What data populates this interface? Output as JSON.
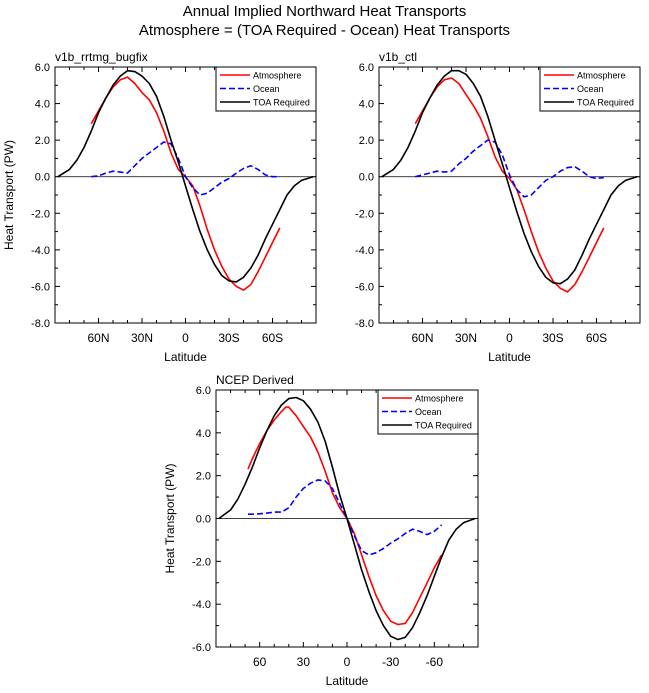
{
  "title_line1": "Annual Implied Northward Heat Transports",
  "title_line2": "Atmosphere = (TOA Required - Ocean) Heat Transports",
  "colors": {
    "atmosphere": "#ff0000",
    "ocean": "#0000ff",
    "toa": "#000000"
  },
  "chart_data": [
    {
      "type": "line",
      "panel_title": "v1b_rrtmg_bugfix",
      "xlabel": "Latitude",
      "ylabel": "Heat Transport (PW)",
      "xlim": [
        90,
        -90
      ],
      "ylim": [
        -8,
        6
      ],
      "xticks": [
        60,
        30,
        0,
        -30,
        -60
      ],
      "xtick_labels": [
        "60N",
        "30N",
        "0",
        "30S",
        "60S"
      ],
      "yticks": [
        -8,
        -6,
        -4,
        -2,
        0,
        2,
        4,
        6
      ],
      "ytick_labels": [
        "-8.0",
        "-6.0",
        "-4.0",
        "-2.0",
        "0.0",
        "2.0",
        "4.0",
        "6.0"
      ],
      "legend": [
        "Atmosphere",
        "Ocean",
        "TOA Required"
      ],
      "legend_position": "top-right",
      "series": [
        {
          "name": "Atmosphere",
          "style": "solid",
          "color": "#ff0000",
          "x": [
            65,
            60,
            55,
            50,
            45,
            40,
            35,
            30,
            25,
            20,
            15,
            10,
            5,
            0,
            -5,
            -10,
            -15,
            -20,
            -25,
            -30,
            -35,
            -40,
            -45,
            -50,
            -55,
            -60,
            -65
          ],
          "y": [
            2.9,
            3.6,
            4.3,
            4.9,
            5.3,
            5.45,
            5.1,
            4.6,
            4.2,
            3.5,
            2.5,
            1.3,
            0.4,
            0.0,
            -0.5,
            -1.6,
            -2.9,
            -4.0,
            -4.9,
            -5.6,
            -6.0,
            -6.2,
            -5.9,
            -5.2,
            -4.4,
            -3.6,
            -2.8
          ]
        },
        {
          "name": "Ocean",
          "style": "dashed",
          "color": "#0000ff",
          "x": [
            65,
            60,
            55,
            50,
            45,
            40,
            35,
            30,
            25,
            20,
            15,
            10,
            5,
            0,
            -5,
            -10,
            -15,
            -20,
            -25,
            -30,
            -35,
            -40,
            -45,
            -50,
            -55,
            -60,
            -65
          ],
          "y": [
            0.0,
            0.05,
            0.2,
            0.3,
            0.25,
            0.2,
            0.6,
            1.0,
            1.3,
            1.6,
            1.9,
            1.8,
            1.0,
            0.0,
            -0.6,
            -1.0,
            -0.9,
            -0.6,
            -0.3,
            -0.1,
            0.2,
            0.45,
            0.6,
            0.4,
            0.1,
            0.0,
            0.0
          ]
        },
        {
          "name": "TOA Required",
          "style": "solid",
          "color": "#000000",
          "x": [
            88,
            80,
            75,
            70,
            65,
            60,
            55,
            50,
            45,
            40,
            35,
            30,
            25,
            20,
            15,
            10,
            5,
            0,
            -5,
            -10,
            -15,
            -20,
            -25,
            -30,
            -35,
            -40,
            -45,
            -50,
            -55,
            -60,
            -65,
            -70,
            -75,
            -80,
            -88
          ],
          "y": [
            0.0,
            0.4,
            0.9,
            1.6,
            2.5,
            3.5,
            4.3,
            5.0,
            5.5,
            5.8,
            5.75,
            5.5,
            5.1,
            4.4,
            3.3,
            2.0,
            0.8,
            -0.5,
            -1.8,
            -3.0,
            -4.0,
            -4.8,
            -5.4,
            -5.7,
            -5.75,
            -5.5,
            -5.0,
            -4.3,
            -3.4,
            -2.6,
            -1.8,
            -1.0,
            -0.5,
            -0.2,
            0.0
          ]
        }
      ]
    },
    {
      "type": "line",
      "panel_title": "v1b_ctl",
      "xlabel": "Latitude",
      "ylabel": "",
      "xlim": [
        90,
        -90
      ],
      "ylim": [
        -8,
        6
      ],
      "xticks": [
        60,
        30,
        0,
        -30,
        -60
      ],
      "xtick_labels": [
        "60N",
        "30N",
        "0",
        "30S",
        "60S"
      ],
      "yticks": [
        -8,
        -6,
        -4,
        -2,
        0,
        2,
        4,
        6
      ],
      "ytick_labels": [
        "-8.0",
        "-6.0",
        "-4.0",
        "-2.0",
        "0.0",
        "2.0",
        "4.0",
        "6.0"
      ],
      "legend": [
        "Atmosphere",
        "Ocean",
        "TOA Required"
      ],
      "legend_position": "top-right",
      "series": [
        {
          "name": "Atmosphere",
          "style": "solid",
          "color": "#ff0000",
          "x": [
            65,
            60,
            55,
            50,
            45,
            40,
            35,
            30,
            25,
            20,
            15,
            10,
            5,
            0,
            -5,
            -10,
            -15,
            -20,
            -25,
            -30,
            -35,
            -40,
            -45,
            -50,
            -55,
            -60,
            -65
          ],
          "y": [
            2.9,
            3.6,
            4.3,
            4.9,
            5.3,
            5.4,
            5.1,
            4.5,
            3.9,
            3.2,
            2.2,
            1.1,
            0.3,
            -0.1,
            -0.7,
            -1.8,
            -3.0,
            -4.1,
            -5.0,
            -5.7,
            -6.1,
            -6.3,
            -5.9,
            -5.2,
            -4.4,
            -3.6,
            -2.8
          ]
        },
        {
          "name": "Ocean",
          "style": "dashed",
          "color": "#0000ff",
          "x": [
            65,
            60,
            55,
            50,
            45,
            40,
            35,
            30,
            25,
            20,
            15,
            10,
            5,
            0,
            -5,
            -10,
            -15,
            -20,
            -25,
            -30,
            -35,
            -40,
            -45,
            -50,
            -55,
            -60,
            -65
          ],
          "y": [
            0.0,
            0.1,
            0.2,
            0.3,
            0.25,
            0.3,
            0.7,
            1.0,
            1.4,
            1.7,
            2.0,
            1.9,
            1.2,
            0.1,
            -0.7,
            -1.1,
            -1.0,
            -0.6,
            -0.2,
            0.0,
            0.3,
            0.5,
            0.55,
            0.3,
            0.0,
            -0.1,
            -0.05
          ]
        },
        {
          "name": "TOA Required",
          "style": "solid",
          "color": "#000000",
          "x": [
            88,
            80,
            75,
            70,
            65,
            60,
            55,
            50,
            45,
            40,
            35,
            30,
            25,
            20,
            15,
            10,
            5,
            0,
            -5,
            -10,
            -15,
            -20,
            -25,
            -30,
            -35,
            -40,
            -45,
            -50,
            -55,
            -60,
            -65,
            -70,
            -75,
            -80,
            -88
          ],
          "y": [
            0.0,
            0.4,
            0.9,
            1.6,
            2.5,
            3.5,
            4.3,
            5.0,
            5.5,
            5.8,
            5.8,
            5.6,
            5.1,
            4.4,
            3.3,
            2.0,
            0.7,
            -0.6,
            -1.9,
            -3.1,
            -4.1,
            -4.9,
            -5.5,
            -5.8,
            -5.85,
            -5.6,
            -5.1,
            -4.3,
            -3.4,
            -2.6,
            -1.8,
            -1.0,
            -0.5,
            -0.2,
            0.0
          ]
        }
      ]
    },
    {
      "type": "line",
      "panel_title": "NCEP Derived",
      "xlabel": "Latitude",
      "ylabel": "Heat Transport (PW)",
      "xlim": [
        90,
        -90
      ],
      "ylim": [
        -6,
        6
      ],
      "xticks": [
        60,
        30,
        0,
        -30,
        -60
      ],
      "xtick_labels": [
        "60",
        "30",
        "0",
        "-30",
        "-60"
      ],
      "yticks": [
        -6,
        -4,
        -2,
        0,
        2,
        4,
        6
      ],
      "ytick_labels": [
        "-6.0",
        "-4.0",
        "-2.0",
        "0.0",
        "2.0",
        "4.0",
        "6.0"
      ],
      "legend": [
        "Atmosphere",
        "Ocean",
        "TOA Required"
      ],
      "legend_position": "top-right",
      "series": [
        {
          "name": "Atmosphere",
          "style": "solid",
          "color": "#ff0000",
          "x": [
            68,
            65,
            60,
            55,
            50,
            45,
            42,
            40,
            35,
            30,
            25,
            20,
            15,
            10,
            5,
            0,
            -5,
            -10,
            -15,
            -20,
            -25,
            -30,
            -35,
            -40,
            -45,
            -50,
            -55,
            -60,
            -65
          ],
          "y": [
            2.3,
            2.8,
            3.5,
            4.1,
            4.6,
            5.0,
            5.2,
            5.2,
            4.8,
            4.3,
            3.8,
            3.1,
            2.2,
            1.2,
            0.5,
            0.0,
            -0.7,
            -1.7,
            -2.7,
            -3.6,
            -4.3,
            -4.8,
            -4.95,
            -4.9,
            -4.4,
            -3.7,
            -3.0,
            -2.3,
            -1.7
          ]
        },
        {
          "name": "Ocean",
          "style": "dashed",
          "color": "#0000ff",
          "x": [
            68,
            65,
            60,
            55,
            50,
            45,
            40,
            35,
            30,
            25,
            20,
            15,
            10,
            5,
            0,
            -5,
            -10,
            -15,
            -20,
            -25,
            -30,
            -35,
            -40,
            -45,
            -50,
            -55,
            -60,
            -65
          ],
          "y": [
            0.2,
            0.2,
            0.22,
            0.25,
            0.3,
            0.3,
            0.5,
            1.0,
            1.4,
            1.65,
            1.8,
            1.75,
            1.4,
            0.7,
            0.0,
            -0.8,
            -1.5,
            -1.7,
            -1.6,
            -1.4,
            -1.15,
            -0.95,
            -0.7,
            -0.5,
            -0.6,
            -0.75,
            -0.6,
            -0.3
          ]
        },
        {
          "name": "TOA Required",
          "style": "solid",
          "color": "#000000",
          "x": [
            88,
            80,
            75,
            70,
            65,
            60,
            55,
            50,
            45,
            40,
            35,
            30,
            25,
            20,
            15,
            10,
            5,
            0,
            -5,
            -10,
            -15,
            -20,
            -25,
            -30,
            -35,
            -40,
            -45,
            -50,
            -55,
            -60,
            -65,
            -70,
            -75,
            -80,
            -88
          ],
          "y": [
            0.0,
            0.4,
            0.9,
            1.6,
            2.4,
            3.3,
            4.1,
            4.8,
            5.3,
            5.6,
            5.65,
            5.5,
            5.1,
            4.5,
            3.6,
            2.4,
            1.1,
            0.0,
            -1.2,
            -2.4,
            -3.4,
            -4.3,
            -5.0,
            -5.5,
            -5.65,
            -5.55,
            -5.1,
            -4.4,
            -3.6,
            -2.7,
            -1.8,
            -1.0,
            -0.5,
            -0.2,
            0.0
          ]
        }
      ]
    }
  ]
}
